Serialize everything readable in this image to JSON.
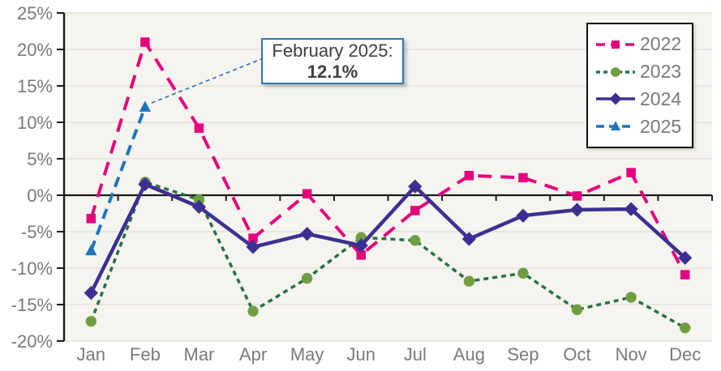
{
  "chart_data": {
    "type": "line",
    "title": "",
    "xlabel": "",
    "ylabel": "",
    "categories": [
      "Jan",
      "Feb",
      "Mar",
      "Apr",
      "May",
      "Jun",
      "Jul",
      "Aug",
      "Sep",
      "Oct",
      "Nov",
      "Dec"
    ],
    "y_ticks": [
      25,
      20,
      15,
      10,
      5,
      0,
      -5,
      -10,
      -15,
      -20
    ],
    "y_tick_labels": [
      "25%",
      "20%",
      "15%",
      "10%",
      "5%",
      "0%",
      "-5%",
      "-10%",
      "-15%",
      "-20%"
    ],
    "ylim": [
      -20,
      25
    ],
    "grid": true,
    "legend_position": "top-right",
    "series": [
      {
        "name": "2022",
        "color": "#E5007E",
        "marker": "square",
        "dash": "17 11",
        "values": [
          -3.2,
          21.0,
          9.2,
          -5.9,
          0.2,
          -8.2,
          -2.1,
          2.7,
          2.4,
          -0.1,
          3.1,
          -10.9
        ]
      },
      {
        "name": "2023",
        "color": "#217346",
        "marker": "circle",
        "marker_color": "#6F9E41",
        "dash": "6 5",
        "values": [
          -17.3,
          1.8,
          -0.6,
          -15.9,
          -11.4,
          -5.8,
          -6.2,
          -11.8,
          -10.7,
          -15.7,
          -14.0,
          -18.2
        ]
      },
      {
        "name": "2024",
        "color": "#3B3092",
        "marker": "diamond",
        "dash": null,
        "values": [
          -13.4,
          1.5,
          -1.6,
          -7.1,
          -5.3,
          -6.9,
          1.2,
          -6.0,
          -2.8,
          -2.0,
          -1.9,
          -8.6
        ]
      },
      {
        "name": "2025",
        "color": "#1F75BB",
        "marker": "triangle",
        "dash": "13 8",
        "values": [
          -7.6,
          12.1,
          null,
          null,
          null,
          null,
          null,
          null,
          null,
          null,
          null,
          null
        ]
      }
    ],
    "annotation": {
      "label": "February 2025:",
      "value": "12.1%",
      "target_series": "2025",
      "target_category": "Feb",
      "border_color": "#2E75B6",
      "leader_color": "#2E75B6"
    },
    "colors": {
      "plot_background": "#F6F4EE",
      "gridline": "#E4E1DA",
      "axis": "#1A1A1A",
      "tick_label": "#7A7A7A",
      "legend_border": "#111111"
    }
  }
}
